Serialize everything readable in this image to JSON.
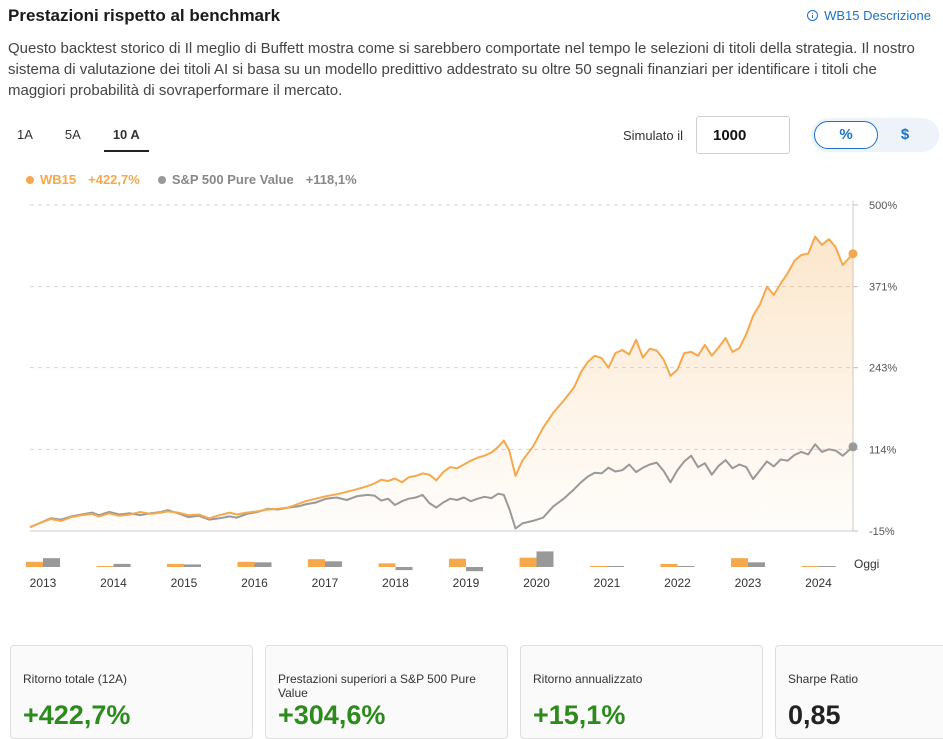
{
  "header": {
    "title": "Prestazioni rispetto al benchmark",
    "description_link": "WB15 Descrizione",
    "paragraph": "Questo backtest storico di Il meglio di Buffett mostra come si sarebbero comportate nel tempo le selezioni di titoli della strategia. Il nostro sistema di valutazione dei titoli AI si basa su un modello predittivo addestrato su oltre 50 segnali finanziari per identificare i titoli che maggiori probabilità di sovraperformare il mercato."
  },
  "controls": {
    "tabs": [
      "1A",
      "5A",
      "10 A"
    ],
    "active_tab": "10 A",
    "simulated_label": "Simulato il",
    "simulated_value": "1000",
    "toggle": {
      "percent": "%",
      "dollar": "$",
      "active": "%"
    }
  },
  "legend": {
    "strategy": {
      "name": "WB15",
      "value": "+422,7%"
    },
    "benchmark": {
      "name": "S&P 500 Pure Value",
      "value": "+118,1%"
    }
  },
  "colors": {
    "strategy": "#f5a84c",
    "benchmark": "#999999",
    "positive": "#2d8a1c",
    "accent": "#1a73c8"
  },
  "chart_data": {
    "type": "line",
    "y_ticks": [
      "500%",
      "371%",
      "243%",
      "114%",
      "-15%"
    ],
    "y_range": [
      -15,
      500
    ],
    "years": [
      "2013",
      "2014",
      "2015",
      "2016",
      "2017",
      "2018",
      "2019",
      "2020",
      "2021",
      "2022",
      "2023",
      "2024"
    ],
    "end_label": "Oggi",
    "series": [
      {
        "name": "WB15",
        "color": "#f5a84c",
        "points": [
          [
            2013.0,
            -9
          ],
          [
            2013.15,
            -2
          ],
          [
            2013.3,
            4
          ],
          [
            2013.45,
            1
          ],
          [
            2013.6,
            7
          ],
          [
            2013.75,
            10
          ],
          [
            2013.9,
            12
          ],
          [
            2014.0,
            8
          ],
          [
            2014.15,
            13
          ],
          [
            2014.3,
            9
          ],
          [
            2014.45,
            11
          ],
          [
            2014.6,
            15
          ],
          [
            2014.75,
            12
          ],
          [
            2014.9,
            14
          ],
          [
            2015.0,
            16
          ],
          [
            2015.15,
            14
          ],
          [
            2015.3,
            10
          ],
          [
            2015.45,
            11
          ],
          [
            2015.6,
            5
          ],
          [
            2015.75,
            10
          ],
          [
            2015.9,
            14
          ],
          [
            2016.0,
            11
          ],
          [
            2016.15,
            14
          ],
          [
            2016.3,
            16
          ],
          [
            2016.45,
            19
          ],
          [
            2016.6,
            20
          ],
          [
            2016.75,
            22
          ],
          [
            2016.9,
            28
          ],
          [
            2017.0,
            32
          ],
          [
            2017.15,
            36
          ],
          [
            2017.3,
            40
          ],
          [
            2017.45,
            43
          ],
          [
            2017.6,
            47
          ],
          [
            2017.75,
            51
          ],
          [
            2017.9,
            56
          ],
          [
            2018.0,
            60
          ],
          [
            2018.1,
            66
          ],
          [
            2018.2,
            64
          ],
          [
            2018.3,
            68
          ],
          [
            2018.4,
            62
          ],
          [
            2018.5,
            70
          ],
          [
            2018.6,
            72
          ],
          [
            2018.7,
            76
          ],
          [
            2018.8,
            74
          ],
          [
            2018.9,
            65
          ],
          [
            2019.0,
            78
          ],
          [
            2019.1,
            86
          ],
          [
            2019.2,
            84
          ],
          [
            2019.3,
            90
          ],
          [
            2019.4,
            96
          ],
          [
            2019.5,
            101
          ],
          [
            2019.6,
            104
          ],
          [
            2019.7,
            109
          ],
          [
            2019.8,
            118
          ],
          [
            2019.88,
            128
          ],
          [
            2019.96,
            112
          ],
          [
            2020.05,
            72
          ],
          [
            2020.15,
            96
          ],
          [
            2020.3,
            118
          ],
          [
            2020.45,
            148
          ],
          [
            2020.6,
            172
          ],
          [
            2020.75,
            191
          ],
          [
            2020.9,
            212
          ],
          [
            2021.0,
            236
          ],
          [
            2021.1,
            252
          ],
          [
            2021.2,
            262
          ],
          [
            2021.3,
            258
          ],
          [
            2021.4,
            243
          ],
          [
            2021.5,
            266
          ],
          [
            2021.6,
            271
          ],
          [
            2021.7,
            264
          ],
          [
            2021.8,
            287
          ],
          [
            2021.9,
            259
          ],
          [
            2022.0,
            273
          ],
          [
            2022.1,
            270
          ],
          [
            2022.2,
            256
          ],
          [
            2022.3,
            230
          ],
          [
            2022.4,
            240
          ],
          [
            2022.5,
            266
          ],
          [
            2022.6,
            268
          ],
          [
            2022.7,
            262
          ],
          [
            2022.8,
            279
          ],
          [
            2022.9,
            262
          ],
          [
            2023.0,
            275
          ],
          [
            2023.1,
            290
          ],
          [
            2023.2,
            268
          ],
          [
            2023.3,
            274
          ],
          [
            2023.4,
            296
          ],
          [
            2023.5,
            325
          ],
          [
            2023.6,
            343
          ],
          [
            2023.7,
            371
          ],
          [
            2023.8,
            358
          ],
          [
            2023.9,
            376
          ],
          [
            2024.0,
            392
          ],
          [
            2024.1,
            412
          ],
          [
            2024.2,
            421
          ],
          [
            2024.3,
            423
          ],
          [
            2024.4,
            450
          ],
          [
            2024.5,
            437
          ],
          [
            2024.6,
            446
          ],
          [
            2024.7,
            433
          ],
          [
            2024.8,
            405
          ],
          [
            2024.95,
            423
          ]
        ]
      },
      {
        "name": "S&P 500 Pure Value",
        "color": "#999999",
        "points": [
          [
            2013.0,
            -9
          ],
          [
            2013.15,
            -2
          ],
          [
            2013.3,
            5
          ],
          [
            2013.45,
            3
          ],
          [
            2013.6,
            8
          ],
          [
            2013.75,
            11
          ],
          [
            2013.9,
            14
          ],
          [
            2014.0,
            10
          ],
          [
            2014.15,
            15
          ],
          [
            2014.3,
            11
          ],
          [
            2014.45,
            13
          ],
          [
            2014.6,
            10
          ],
          [
            2014.75,
            13
          ],
          [
            2014.9,
            15
          ],
          [
            2015.0,
            18
          ],
          [
            2015.15,
            13
          ],
          [
            2015.3,
            7
          ],
          [
            2015.45,
            9
          ],
          [
            2015.6,
            3
          ],
          [
            2015.75,
            5
          ],
          [
            2015.9,
            8
          ],
          [
            2016.0,
            6
          ],
          [
            2016.15,
            12
          ],
          [
            2016.3,
            15
          ],
          [
            2016.45,
            20
          ],
          [
            2016.6,
            19
          ],
          [
            2016.75,
            22
          ],
          [
            2016.9,
            24
          ],
          [
            2017.0,
            27
          ],
          [
            2017.15,
            30
          ],
          [
            2017.3,
            36
          ],
          [
            2017.45,
            38
          ],
          [
            2017.6,
            34
          ],
          [
            2017.75,
            40
          ],
          [
            2017.9,
            42
          ],
          [
            2018.0,
            41
          ],
          [
            2018.1,
            33
          ],
          [
            2018.2,
            36
          ],
          [
            2018.3,
            26
          ],
          [
            2018.4,
            32
          ],
          [
            2018.5,
            36
          ],
          [
            2018.6,
            38
          ],
          [
            2018.7,
            42
          ],
          [
            2018.8,
            29
          ],
          [
            2018.9,
            22
          ],
          [
            2019.0,
            30
          ],
          [
            2019.1,
            36
          ],
          [
            2019.2,
            34
          ],
          [
            2019.3,
            38
          ],
          [
            2019.4,
            32
          ],
          [
            2019.5,
            36
          ],
          [
            2019.6,
            39
          ],
          [
            2019.7,
            37
          ],
          [
            2019.8,
            44
          ],
          [
            2019.88,
            42
          ],
          [
            2019.96,
            20
          ],
          [
            2020.05,
            -11
          ],
          [
            2020.15,
            -3
          ],
          [
            2020.3,
            1
          ],
          [
            2020.45,
            6
          ],
          [
            2020.6,
            24
          ],
          [
            2020.75,
            36
          ],
          [
            2020.9,
            51
          ],
          [
            2021.0,
            62
          ],
          [
            2021.1,
            71
          ],
          [
            2021.2,
            77
          ],
          [
            2021.3,
            76
          ],
          [
            2021.4,
            85
          ],
          [
            2021.5,
            79
          ],
          [
            2021.6,
            81
          ],
          [
            2021.7,
            90
          ],
          [
            2021.8,
            78
          ],
          [
            2021.9,
            85
          ],
          [
            2022.0,
            90
          ],
          [
            2022.1,
            93
          ],
          [
            2022.2,
            80
          ],
          [
            2022.3,
            62
          ],
          [
            2022.4,
            81
          ],
          [
            2022.5,
            95
          ],
          [
            2022.6,
            104
          ],
          [
            2022.7,
            86
          ],
          [
            2022.8,
            92
          ],
          [
            2022.9,
            74
          ],
          [
            2023.0,
            88
          ],
          [
            2023.1,
            97
          ],
          [
            2023.2,
            84
          ],
          [
            2023.3,
            90
          ],
          [
            2023.4,
            86
          ],
          [
            2023.5,
            67
          ],
          [
            2023.6,
            81
          ],
          [
            2023.7,
            95
          ],
          [
            2023.8,
            87
          ],
          [
            2023.9,
            98
          ],
          [
            2024.0,
            96
          ],
          [
            2024.1,
            105
          ],
          [
            2024.2,
            110
          ],
          [
            2024.3,
            106
          ],
          [
            2024.4,
            122
          ],
          [
            2024.5,
            110
          ],
          [
            2024.6,
            114
          ],
          [
            2024.7,
            112
          ],
          [
            2024.8,
            104
          ],
          [
            2024.95,
            118
          ]
        ]
      }
    ],
    "annual_bars": {
      "note": "yearly returns (relative scale)",
      "WB15": [
        10,
        1,
        6,
        10,
        15,
        7,
        16,
        18,
        2,
        6,
        17,
        1
      ],
      "S&P 500 Pure Value": [
        17,
        6,
        5,
        9,
        11,
        -6,
        -8,
        30,
        1,
        0,
        9,
        1
      ]
    }
  },
  "stats": [
    {
      "label": "Ritorno totale (12A)",
      "value": "+422,7%",
      "positive": true
    },
    {
      "label": "Prestazioni superiori a S&P 500 Pure Value",
      "value": "+304,6%",
      "positive": true
    },
    {
      "label": "Ritorno annualizzato",
      "value": "+15,1%",
      "positive": true
    },
    {
      "label": "Sharpe Ratio",
      "value": "0,85",
      "positive": false
    }
  ]
}
